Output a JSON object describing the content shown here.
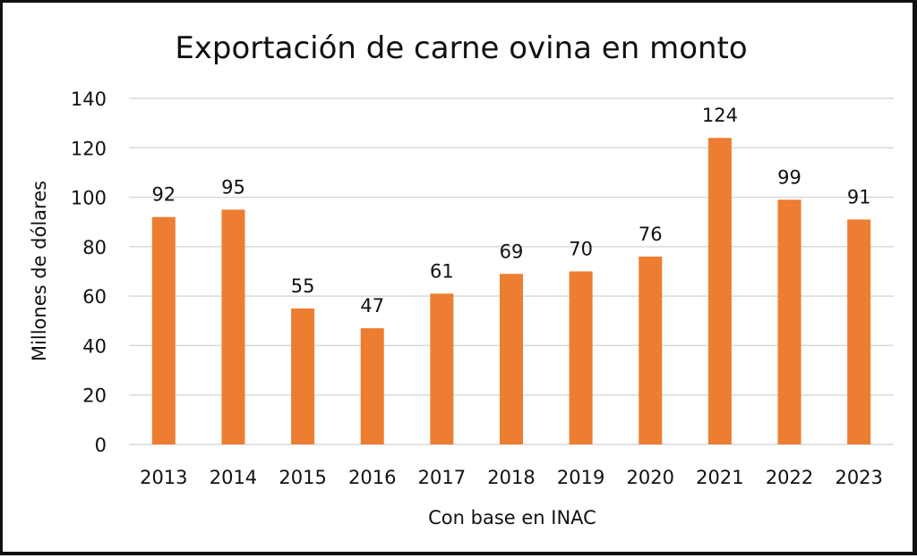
{
  "chart_data": {
    "type": "bar",
    "title": "Exportación de carne ovina en monto",
    "xlabel": "Con base en INAC",
    "ylabel": "Millones de dólares",
    "categories": [
      "2013",
      "2014",
      "2015",
      "2016",
      "2017",
      "2018",
      "2019",
      "2020",
      "2021",
      "2022",
      "2023"
    ],
    "values": [
      92,
      95,
      55,
      47,
      61,
      69,
      70,
      76,
      124,
      99,
      91
    ],
    "data_labels": [
      "92",
      "95",
      "55",
      "47",
      "61",
      "69",
      "70",
      "76",
      "124",
      "99",
      "91"
    ],
    "ylim": [
      0,
      140
    ],
    "yticks": [
      "0",
      "20",
      "40",
      "60",
      "80",
      "100",
      "120",
      "140"
    ],
    "ytick_values": [
      0,
      20,
      40,
      60,
      80,
      100,
      120,
      140
    ],
    "grid": true,
    "legend": "none",
    "bar_color": "#ED7D31",
    "grid_color": "#D9D9D9"
  }
}
